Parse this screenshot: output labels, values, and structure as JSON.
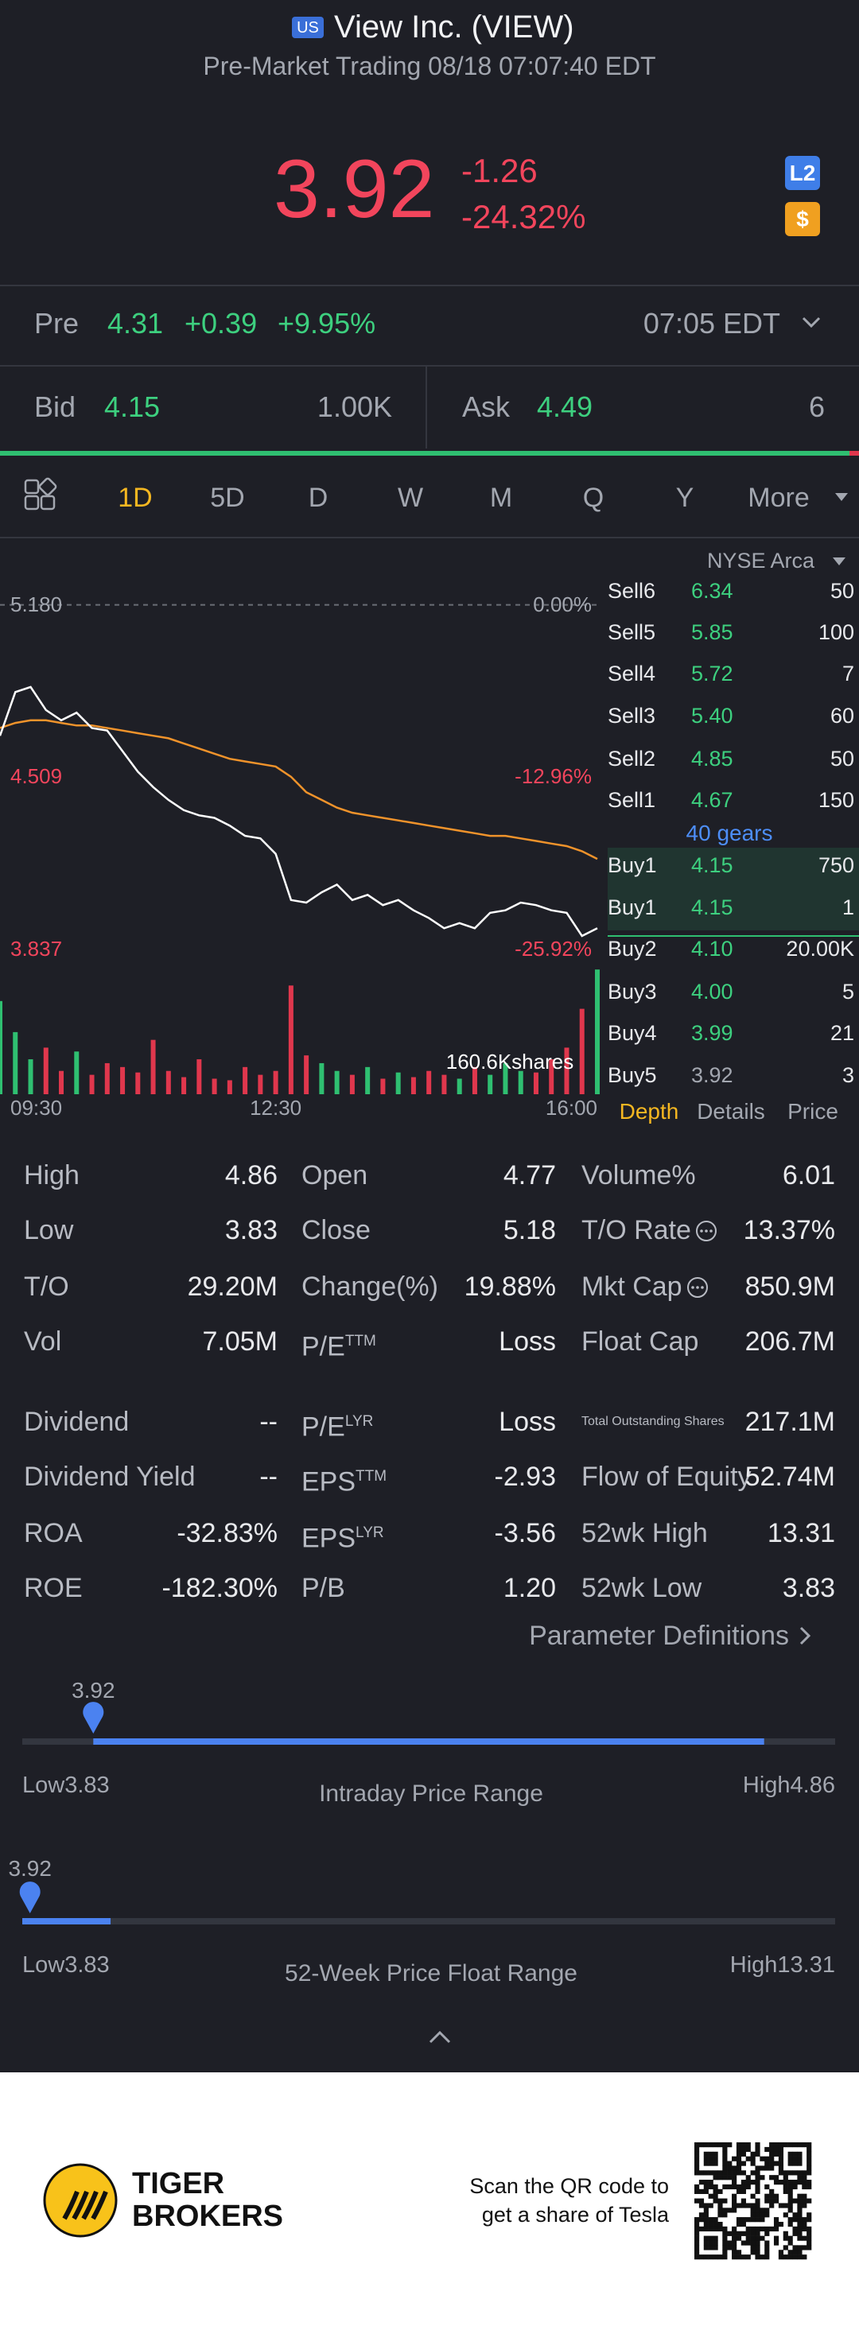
{
  "header": {
    "market_badge": "US",
    "title": "View Inc. (VIEW)",
    "subtitle": "Pre-Market Trading 08/18 07:07:40 EDT"
  },
  "quote": {
    "price": "3.92",
    "change": "-1.26",
    "change_pct": "-24.32%",
    "badges": [
      "L2",
      "$"
    ]
  },
  "premarket": {
    "label": "Pre",
    "price": "4.31",
    "change": "+0.39",
    "change_pct": "+9.95%",
    "time": "07:05 EDT"
  },
  "bid_ask": {
    "bid_label": "Bid",
    "bid": "4.15",
    "bid_size": "1.00K",
    "ask_label": "Ask",
    "ask": "4.49",
    "ask_size": "6"
  },
  "tabs": [
    "1D",
    "5D",
    "D",
    "W",
    "M",
    "Q",
    "Y",
    "More"
  ],
  "chart_data": {
    "type": "line",
    "x": [
      "09:30",
      "09:40",
      "09:50",
      "10:00",
      "10:10",
      "10:20",
      "10:30",
      "10:40",
      "10:50",
      "11:00",
      "11:10",
      "11:20",
      "11:30",
      "11:40",
      "11:50",
      "12:00",
      "12:10",
      "12:20",
      "12:30",
      "12:40",
      "12:50",
      "13:00",
      "13:10",
      "13:20",
      "13:30",
      "13:40",
      "13:50",
      "14:00",
      "14:10",
      "14:20",
      "14:30",
      "14:40",
      "14:50",
      "15:00",
      "15:10",
      "15:20",
      "15:30",
      "15:40",
      "15:50",
      "16:00"
    ],
    "series": [
      {
        "color": "#ffffff",
        "values": [
          4.67,
          4.84,
          4.86,
          4.77,
          4.73,
          4.76,
          4.7,
          4.69,
          4.61,
          4.53,
          4.47,
          4.42,
          4.38,
          4.36,
          4.35,
          4.32,
          4.28,
          4.27,
          4.21,
          4.03,
          4.02,
          4.06,
          4.09,
          4.03,
          4.05,
          4.01,
          4.03,
          3.99,
          3.96,
          3.92,
          3.94,
          3.92,
          3.98,
          3.99,
          4.02,
          4.01,
          3.99,
          3.98,
          3.89,
          3.92
        ]
      },
      {
        "color": "#f0932b",
        "values": [
          4.7,
          4.72,
          4.73,
          4.73,
          4.72,
          4.71,
          4.71,
          4.7,
          4.69,
          4.68,
          4.67,
          4.66,
          4.64,
          4.62,
          4.6,
          4.58,
          4.57,
          4.56,
          4.55,
          4.51,
          4.45,
          4.42,
          4.39,
          4.37,
          4.36,
          4.35,
          4.34,
          4.33,
          4.32,
          4.31,
          4.3,
          4.29,
          4.28,
          4.28,
          4.27,
          4.26,
          4.25,
          4.24,
          4.22,
          4.19
        ]
      }
    ],
    "ylim": [
      3.8,
      5.25
    ],
    "yticks": [
      {
        "value": 5.18,
        "label": "5.180"
      },
      {
        "value": 4.509,
        "label": "4.509"
      },
      {
        "value": 3.837,
        "label": "3.837"
      }
    ],
    "y2lim": [
      -26.64,
      1.35
    ],
    "y2ticks": [
      {
        "value": 0,
        "label": "0.00%"
      },
      {
        "value": -12.96,
        "label": "-12.96%"
      },
      {
        "value": -25.92,
        "label": "-25.92%"
      }
    ],
    "xticks": [
      "09:30",
      "12:30",
      "16:00"
    ],
    "volume": {
      "label": "160.6Kshares",
      "ylim": [
        0,
        170000
      ],
      "up_color": "#2fbf71",
      "down_color": "#e0374d",
      "values": [
        120000,
        80000,
        45000,
        60000,
        30000,
        55000,
        25000,
        40000,
        35000,
        28000,
        70000,
        30000,
        22000,
        45000,
        20000,
        18000,
        35000,
        25000,
        30000,
        140000,
        50000,
        40000,
        30000,
        25000,
        35000,
        20000,
        28000,
        22000,
        30000,
        25000,
        20000,
        35000,
        25000,
        40000,
        30000,
        28000,
        45000,
        60000,
        110000,
        160600
      ]
    }
  },
  "order_book": {
    "exchange": "NYSE Arca",
    "gears": "40 gears",
    "rows": [
      {
        "side": "Sell6",
        "price": "6.34",
        "size": "50"
      },
      {
        "side": "Sell5",
        "price": "5.85",
        "size": "100"
      },
      {
        "side": "Sell4",
        "price": "5.72",
        "size": "7"
      },
      {
        "side": "Sell3",
        "price": "5.40",
        "size": "60"
      },
      {
        "side": "Sell2",
        "price": "4.85",
        "size": "50"
      },
      {
        "side": "Sell1",
        "price": "4.67",
        "size": "150"
      },
      {
        "side": "Buy1",
        "price": "4.15",
        "size": "750"
      },
      {
        "side": "Buy1",
        "price": "4.15",
        "size": "1"
      },
      {
        "side": "Buy2",
        "price": "4.10",
        "size": "20.00K"
      },
      {
        "side": "Buy3",
        "price": "4.00",
        "size": "5"
      },
      {
        "side": "Buy4",
        "price": "3.99",
        "size": "21"
      },
      {
        "side": "Buy5",
        "price": "3.92",
        "size": "3"
      }
    ],
    "tabs": [
      "Depth",
      "Details",
      "Price"
    ]
  },
  "stats": {
    "rows": [
      [
        {
          "label": "High",
          "value": "4.86"
        },
        {
          "label": "Open",
          "value": "4.77"
        },
        {
          "label": "Volume%",
          "value": "6.01"
        }
      ],
      [
        {
          "label": "Low",
          "value": "3.83"
        },
        {
          "label": "Close",
          "value": "5.18"
        },
        {
          "label": "T/O Rate",
          "info": true,
          "value": "13.37%"
        }
      ],
      [
        {
          "label": "T/O",
          "value": "29.20M"
        },
        {
          "label": "Change(%)",
          "value": "19.88%"
        },
        {
          "label": "Mkt Cap",
          "info": true,
          "value": "850.9M"
        }
      ],
      [
        {
          "label": "Vol",
          "value": "7.05M"
        },
        {
          "label": "P/E",
          "sup": "TTM",
          "value": "Loss"
        },
        {
          "label": "Float Cap",
          "value": "206.7M"
        }
      ],
      [
        {
          "label": "Dividend",
          "value": "--"
        },
        {
          "label": "P/E",
          "sup": "LYR",
          "value": "Loss"
        },
        {
          "label": "Total Outstanding Shares",
          "small": true,
          "value": "217.1M"
        }
      ],
      [
        {
          "label": "Dividend Yield",
          "value": "--"
        },
        {
          "label": "EPS",
          "sup": "TTM",
          "value": "-2.93"
        },
        {
          "label": "Flow of Equity",
          "value": "52.74M"
        }
      ],
      [
        {
          "label": "ROA",
          "value": "-32.83%"
        },
        {
          "label": "EPS",
          "sup": "LYR",
          "value": "-3.56"
        },
        {
          "label": "52wk High",
          "value": "13.31"
        }
      ],
      [
        {
          "label": "ROE",
          "value": "-182.30%"
        },
        {
          "label": "P/B",
          "value": "1.20"
        },
        {
          "label": "52wk Low",
          "value": "3.83"
        }
      ]
    ],
    "link": "Parameter Definitions"
  },
  "ranges": [
    {
      "current": "3.92",
      "low_label": "Low",
      "low": "3.83",
      "title": "Intraday Price Range",
      "high_label": "High",
      "high": "4.86"
    },
    {
      "current": "3.92",
      "low_label": "Low",
      "low": "3.83",
      "title": "52-Week Price Float Range",
      "high_label": "High",
      "high": "13.31"
    }
  ],
  "footer": {
    "brand": [
      "TIGER",
      "BROKERS"
    ],
    "cta": [
      "Scan the QR code to",
      "get a share of Tesla"
    ]
  }
}
